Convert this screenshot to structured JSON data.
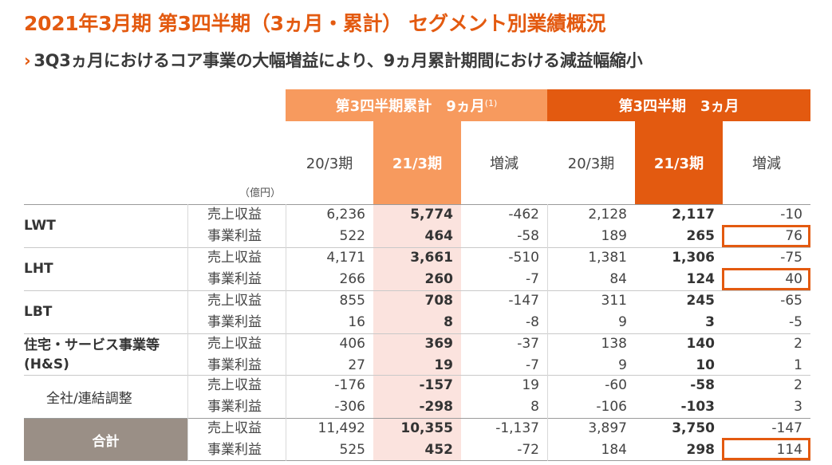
{
  "title": "2021年3月期 第3四半期（3ヵ月・累計） セグメント別業績概況",
  "subtitle": {
    "chevron": "›",
    "text": "3Q3ヵ月におけるコア事業の大幅増益により、9ヵ月累計期間における減益幅縮小"
  },
  "header": {
    "group1": "第3四半期累計　9ヵ月",
    "group1_note": "(1)",
    "group2": "第3四半期　3ヵ月",
    "columns": [
      "20/3期",
      "21/3期",
      "増減",
      "20/3期",
      "21/3期",
      "増減"
    ],
    "unit": "（億円）"
  },
  "metrics": {
    "revenue": "売上収益",
    "profit": "事業利益"
  },
  "segments": [
    {
      "name": "LWT",
      "rows": [
        {
          "metric": "売上収益",
          "values": [
            "6,236",
            "5,774",
            "-462",
            "2,128",
            "2,117",
            "-10"
          ]
        },
        {
          "metric": "事業利益",
          "values": [
            "522",
            "464",
            "-58",
            "189",
            "265",
            "76"
          ]
        }
      ]
    },
    {
      "name": "LHT",
      "rows": [
        {
          "metric": "売上収益",
          "values": [
            "4,171",
            "3,661",
            "-510",
            "1,381",
            "1,306",
            "-75"
          ]
        },
        {
          "metric": "事業利益",
          "values": [
            "266",
            "260",
            "-7",
            "84",
            "124",
            "40"
          ]
        }
      ]
    },
    {
      "name": "LBT",
      "rows": [
        {
          "metric": "売上収益",
          "values": [
            "855",
            "708",
            "-147",
            "311",
            "245",
            "-65"
          ]
        },
        {
          "metric": "事業利益",
          "values": [
            "16",
            "8",
            "-8",
            "9",
            "3",
            "-5"
          ]
        }
      ]
    },
    {
      "name": "住宅・サービス事業等",
      "name2": "(H&S)",
      "rows": [
        {
          "metric": "売上収益",
          "values": [
            "406",
            "369",
            "-37",
            "138",
            "140",
            "2"
          ]
        },
        {
          "metric": "事業利益",
          "values": [
            "27",
            "19",
            "-7",
            "9",
            "10",
            "1"
          ]
        }
      ]
    },
    {
      "name": "全社/連結調整",
      "rows": [
        {
          "metric": "売上収益",
          "values": [
            "-176",
            "-157",
            "19",
            "-60",
            "-58",
            "2"
          ]
        },
        {
          "metric": "事業利益",
          "values": [
            "-306",
            "-298",
            "8",
            "-106",
            "-103",
            "3"
          ]
        }
      ]
    },
    {
      "name": "合計",
      "rows": [
        {
          "metric": "売上収益",
          "values": [
            "11,492",
            "10,355",
            "-1,137",
            "3,897",
            "3,750",
            "-147"
          ]
        },
        {
          "metric": "事業利益",
          "values": [
            "525",
            "452",
            "-72",
            "184",
            "298",
            "114"
          ]
        }
      ]
    }
  ],
  "colors": {
    "accent": "#e35a10",
    "accent_light": "#f79a5e",
    "highlight_fill": "#fbe3de",
    "total_fill": "#9a8f86"
  }
}
